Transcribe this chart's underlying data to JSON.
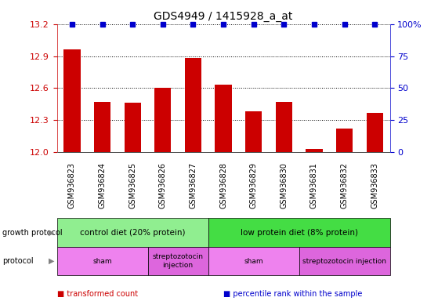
{
  "title": "GDS4949 / 1415928_a_at",
  "samples": [
    "GSM936823",
    "GSM936824",
    "GSM936825",
    "GSM936826",
    "GSM936827",
    "GSM936828",
    "GSM936829",
    "GSM936830",
    "GSM936831",
    "GSM936832",
    "GSM936833"
  ],
  "bar_values": [
    12.96,
    12.47,
    12.46,
    12.6,
    12.88,
    12.63,
    12.38,
    12.47,
    12.03,
    12.22,
    12.37
  ],
  "percentile_values": [
    100,
    100,
    100,
    100,
    100,
    100,
    100,
    100,
    100,
    100,
    100
  ],
  "bar_color": "#cc0000",
  "percentile_color": "#0000cc",
  "ylim_left": [
    12.0,
    13.2
  ],
  "ylim_right": [
    0,
    100
  ],
  "yticks_left": [
    12.0,
    12.3,
    12.6,
    12.9,
    13.2
  ],
  "yticks_right": [
    0,
    25,
    50,
    75,
    100
  ],
  "ytick_labels_right": [
    "0",
    "25",
    "50",
    "75",
    "100%"
  ],
  "grid_values": [
    12.3,
    12.6,
    12.9
  ],
  "growth_protocol_groups": [
    {
      "label": "control diet (20% protein)",
      "start": 0,
      "end": 4,
      "color": "#90ee90"
    },
    {
      "label": "low protein diet (8% protein)",
      "start": 5,
      "end": 10,
      "color": "#44dd44"
    }
  ],
  "protocol_groups": [
    {
      "label": "sham",
      "start": 0,
      "end": 2,
      "color": "#ee82ee"
    },
    {
      "label": "streptozotocin\ninjection",
      "start": 3,
      "end": 4,
      "color": "#dd66dd"
    },
    {
      "label": "sham",
      "start": 5,
      "end": 7,
      "color": "#ee82ee"
    },
    {
      "label": "streptozotocin injection",
      "start": 8,
      "end": 10,
      "color": "#dd66dd"
    }
  ],
  "legend_items": [
    {
      "label": "transformed count",
      "color": "#cc0000"
    },
    {
      "label": "percentile rank within the sample",
      "color": "#0000cc"
    }
  ],
  "background_color": "#ffffff",
  "sample_bg_color": "#d3d3d3",
  "left_label_color": "#000000",
  "fig_width": 5.59,
  "fig_height": 3.84
}
